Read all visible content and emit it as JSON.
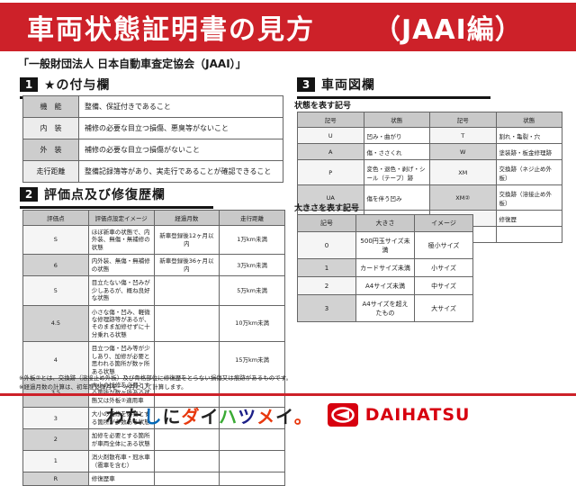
{
  "colors": {
    "header_red": "#cd2129",
    "rule_red": "#cd2129",
    "brand_red": "#d7000f"
  },
  "header": {
    "title": "車両状態証明書の見方",
    "edition": "（JAAI編）"
  },
  "subtitle": "「一般財団法人 日本自動車査定協会（JAAI）」",
  "sections": {
    "star": {
      "number": "1",
      "title": "★の付与欄",
      "table": {
        "rows": [
          [
            "機　能",
            "整備、保証付きであること"
          ],
          [
            "内　装",
            "補修の必要な目立つ損傷、悪臭等がないこと"
          ],
          [
            "外　装",
            "補修の必要な目立つ損傷がないこと"
          ],
          [
            "走行距離",
            "整備記録簿等があり、実走行であることが確認できること"
          ]
        ]
      }
    },
    "score": {
      "number": "2",
      "title": "評価点及び修復歴欄",
      "table": {
        "headers": [
          "評価点",
          "評価点設定イメージ",
          "経過月数",
          "走行距離"
        ],
        "rows": [
          [
            "S",
            "ほぼ新車の状態で、内外装、無傷・無補修の状態",
            "新車登録後12ヶ月以内",
            "1万km未満"
          ],
          [
            "6",
            "内外装、無傷・無補修の状態",
            "新車登録後36ヶ月以内",
            "3万km未満"
          ],
          [
            "5",
            "目立たない傷・凹みが少しあるが、概ね良好な状態",
            "",
            "5万km未満"
          ],
          [
            "4.5",
            "小さな傷・凹み、軽微な修理跡等があるが、そのまま加修せずに十分乗れる状態",
            "",
            "10万km未満"
          ],
          [
            "4",
            "目立つ傷・凹み等が少しあり、加修が必要と思われる箇所が数ヶ所ある状態",
            "",
            "15万km未満"
          ],
          [
            "3.5",
            "大小の加修を必要とする箇所が数ヶ所ある状態又は外板②適用車",
            "",
            ""
          ],
          [
            "3",
            "大小の加修を必要とする箇所が多数ある状態",
            "",
            ""
          ],
          [
            "2",
            "加修を必要とする箇所が車両全体にある状態",
            "",
            ""
          ],
          [
            "1",
            "消火剤散布車・冠水車（雹車を含む）",
            "",
            ""
          ],
          [
            "R",
            "修復歴車",
            "",
            ""
          ]
        ]
      }
    },
    "diagram": {
      "number": "3",
      "title": "車両図欄",
      "condition_label": "状態を表す記号",
      "condition_table": {
        "headers": [
          "記号",
          "状態",
          "記号",
          "状態"
        ],
        "rows": [
          [
            "U",
            "凹み・曲がり",
            "T",
            "割れ・亀裂・穴"
          ],
          [
            "A",
            "傷・ささくれ",
            "W",
            "塗装跡・板金修理跡"
          ],
          [
            "P",
            "変色・退色・剥げ・シール（テープ）跡",
            "XM",
            "交換跡（ネジ止め外板）"
          ],
          [
            "UA",
            "傷を伴う凹み",
            "XM②",
            "交換跡（溶接止め外板）"
          ],
          [
            "S",
            "さび",
            "M",
            "修復歴"
          ],
          [
            "C",
            "腐食",
            "",
            ""
          ]
        ]
      },
      "size_label": "大きさを表す記号",
      "size_table": {
        "headers": [
          "記号",
          "大きさ",
          "イメージ"
        ],
        "rows": [
          [
            "0",
            "500円玉サイズ未満",
            "極小サイズ"
          ],
          [
            "1",
            "カードサイズ未満",
            "小サイズ"
          ],
          [
            "2",
            "A4サイズ未満",
            "中サイズ"
          ],
          [
            "3",
            "A4サイズを超えたもの",
            "大サイズ"
          ]
        ]
      }
    }
  },
  "notes": [
    "※外板②とは、交換跡（溶接止め外板）及び骨格部位に修復歴をとらない損傷又は痕跡があるものです。",
    "※経過月数の計算は、初年度登録月を一ヶ月として計算します。"
  ],
  "footer": {
    "slogan_chars": [
      {
        "ch": "わ",
        "color": "#222222"
      },
      {
        "ch": "た",
        "color": "#222222"
      },
      {
        "ch": "し",
        "color": "#0068b7"
      },
      {
        "ch": "に",
        "color": "#222222"
      },
      {
        "ch": "ダ",
        "color": "#e8380d"
      },
      {
        "ch": "イ",
        "color": "#222222"
      },
      {
        "ch": "ハ",
        "color": "#3aaa35"
      },
      {
        "ch": "ツ",
        "color": "#1d2088"
      },
      {
        "ch": "メ",
        "color": "#e8380d"
      },
      {
        "ch": "イ",
        "color": "#222222"
      },
      {
        "ch": "。",
        "color": "#e8380d"
      }
    ],
    "brand": "DAIHATSU"
  }
}
